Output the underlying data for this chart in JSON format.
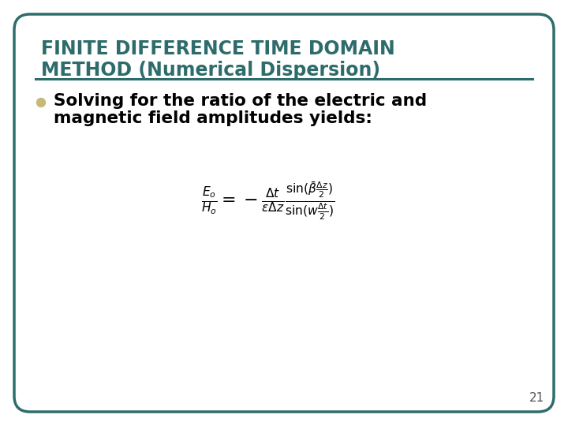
{
  "title_line1": "FINITE DIFFERENCE TIME DOMAIN",
  "title_line2": "METHOD (Numerical Dispersion)",
  "title_color": "#2e6b6b",
  "bullet_text_line1": "Solving for the ratio of the electric and",
  "bullet_text_line2": "magnetic field amplitudes yields:",
  "bullet_color": "#c8b87a",
  "body_text_color": "#000000",
  "background_color": "#ffffff",
  "border_color": "#2e6b6b",
  "outer_bg": "#ffffff",
  "page_number": "21",
  "title_fontsize": 17,
  "bullet_fontsize": 15.5,
  "formula_fontsize": 16
}
